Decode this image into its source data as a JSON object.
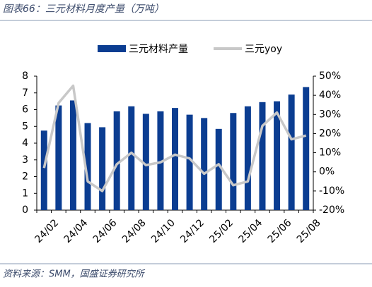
{
  "chart_data": {
    "type": "bar_line",
    "title": "图表66：三元材料月度产量（万吨）",
    "source": "资料来源：SMM，国盛证券研究所",
    "categories": [
      "24/02",
      null,
      "24/04",
      null,
      "24/06",
      null,
      "24/08",
      null,
      "24/10",
      null,
      "24/12",
      null,
      "25/02",
      null,
      "25/04",
      null,
      "25/06",
      null,
      "25/08"
    ],
    "series": [
      {
        "name": "三元材料产量",
        "color": "#0b3d91",
        "type": "bar",
        "values": [
          4.75,
          6.25,
          6.55,
          5.2,
          4.95,
          5.9,
          6.2,
          5.75,
          5.9,
          6.1,
          5.7,
          5.5,
          4.85,
          5.8,
          6.2,
          6.45,
          6.5,
          6.9,
          7.35
        ]
      },
      {
        "name": "三元yoy",
        "color": "#c8c8c8",
        "type": "line",
        "axis": "y2",
        "values": [
          2,
          36,
          45,
          -5,
          -10,
          4,
          10,
          3.5,
          5,
          9,
          7,
          -1,
          4,
          -7,
          -5,
          24,
          31,
          17,
          19
        ]
      }
    ],
    "ylim": [
      0,
      8
    ],
    "yticks": [
      0,
      1,
      2,
      3,
      4,
      5,
      6,
      7,
      8
    ],
    "y2lim": [
      -20,
      50
    ],
    "y2ticks": [
      {
        "value": -20,
        "label": "-20%"
      },
      {
        "value": -10,
        "label": "-10%"
      },
      {
        "value": 0,
        "label": "0%"
      },
      {
        "value": 10,
        "label": "10%"
      },
      {
        "value": 20,
        "label": "20%"
      },
      {
        "value": 30,
        "label": "30%"
      },
      {
        "value": 40,
        "label": "40%"
      },
      {
        "value": 50,
        "label": "50%"
      }
    ],
    "legend": "top"
  }
}
